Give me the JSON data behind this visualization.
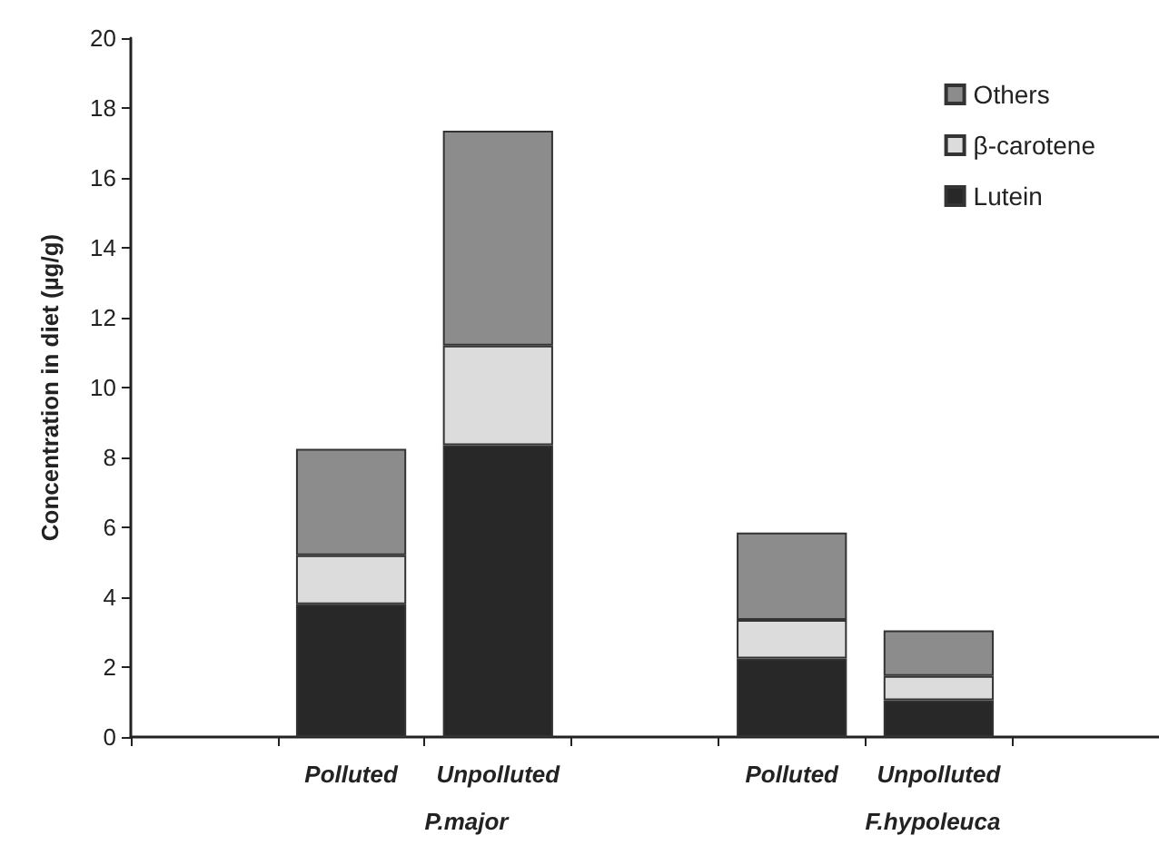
{
  "chart_data": {
    "type": "bar",
    "stacked": true,
    "ylabel": "Concentration in diet (µg/g)",
    "categories": [
      null,
      "Polluted",
      "Unpolluted",
      null,
      "Polluted",
      "Unpolluted",
      null
    ],
    "series": [
      {
        "name": "Lutein",
        "color": "#282828",
        "values": [
          null,
          3.8,
          8.35,
          null,
          2.25,
          1.05,
          null
        ]
      },
      {
        "name": "β-carotene",
        "color": "#dcdcdc",
        "values": [
          null,
          1.4,
          2.85,
          null,
          1.1,
          0.7,
          null
        ]
      },
      {
        "name": "Others",
        "color": "#8c8c8c",
        "values": [
          null,
          3.05,
          6.15,
          null,
          2.5,
          1.3,
          null
        ]
      }
    ],
    "annotations": [
      "P.major",
      "F.hypoleuca"
    ],
    "ylim": [
      0,
      20
    ],
    "yticks": [
      0,
      2,
      4,
      6,
      8,
      10,
      12,
      14,
      16,
      18,
      20
    ],
    "grid": false,
    "legend": "top right"
  }
}
